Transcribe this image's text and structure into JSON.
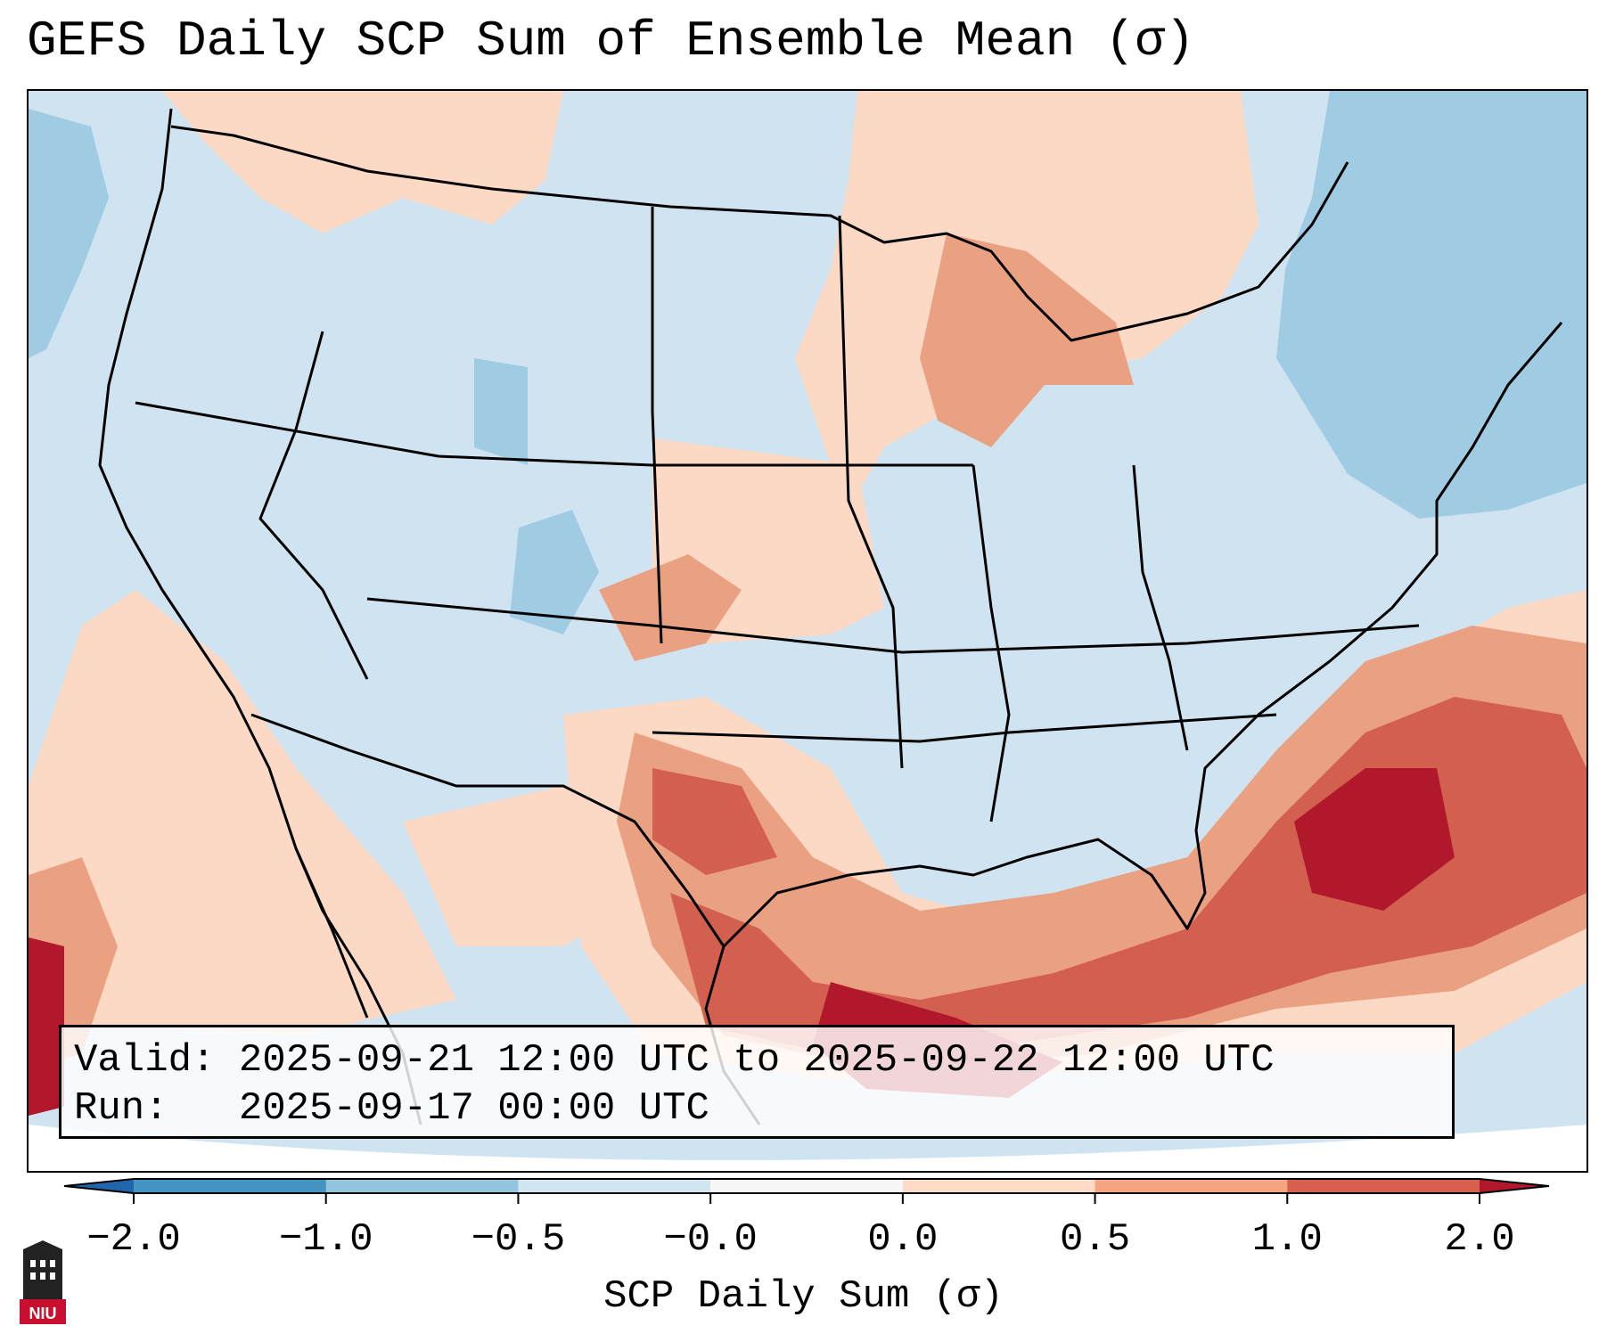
{
  "title": "GEFS Daily SCP Sum of Ensemble Mean (σ)",
  "info": {
    "valid_line": "Valid: 2025-09-21 12:00 UTC to 2025-09-22 12:00 UTC",
    "run_line": "Run:   2025-09-17 00:00 UTC"
  },
  "colorbar": {
    "label": "SCP Daily Sum (σ)",
    "ticks": [
      "−2.0",
      "−1.0",
      "−0.5",
      "−0.0",
      "0.0",
      "0.5",
      "1.0",
      "2.0"
    ],
    "bins": [
      {
        "from": -2.0,
        "to": -1.0,
        "color": "#4393c3"
      },
      {
        "from": -1.0,
        "to": -0.5,
        "color": "#92c5de"
      },
      {
        "from": -0.5,
        "to": -0.0,
        "color": "#d1e5f0"
      },
      {
        "from": -0.0,
        "to": 0.0,
        "color": "#f7f7f7"
      },
      {
        "from": 0.0,
        "to": 0.5,
        "color": "#fddbc7"
      },
      {
        "from": 0.5,
        "to": 1.0,
        "color": "#f4a582"
      },
      {
        "from": 1.0,
        "to": 2.0,
        "color": "#d6604d"
      }
    ],
    "extend_low_color": "#2166ac",
    "extend_high_color": "#b2182b"
  },
  "map": {
    "region": "Contiguous United States and surrounding waters",
    "background_color": "#cfe4f0",
    "field_colors": {
      "light_positive": "#fcd9c4",
      "moderate_positive": "#eaa182",
      "strong_positive": "#d3604f",
      "extreme_positive": "#b2182b",
      "moderate_negative": "#9fcbe3"
    }
  },
  "logo": {
    "text": "NIU",
    "color": "#c8102e"
  }
}
